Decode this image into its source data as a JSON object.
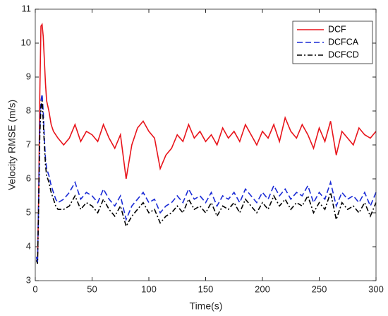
{
  "chart_data": {
    "type": "line",
    "xlabel": "Time(s)",
    "ylabel": "Velocity RMSE (m/s)",
    "xlim": [
      0,
      300
    ],
    "ylim": [
      3,
      11
    ],
    "xticks": [
      0,
      50,
      100,
      150,
      200,
      250,
      300
    ],
    "yticks": [
      3,
      4,
      5,
      6,
      7,
      8,
      9,
      10,
      11
    ],
    "legend": "upper right",
    "grid": false,
    "x": [
      1,
      2,
      3,
      4,
      5,
      6,
      7,
      8,
      9,
      10,
      12,
      14,
      16,
      18,
      20,
      25,
      30,
      35,
      40,
      45,
      50,
      55,
      60,
      65,
      70,
      75,
      80,
      85,
      90,
      95,
      100,
      105,
      110,
      115,
      120,
      125,
      130,
      135,
      140,
      145,
      150,
      155,
      160,
      165,
      170,
      175,
      180,
      185,
      190,
      195,
      200,
      205,
      210,
      215,
      220,
      225,
      230,
      235,
      240,
      245,
      250,
      255,
      260,
      265,
      270,
      275,
      280,
      285,
      290,
      295,
      300
    ],
    "series": [
      {
        "name": "DCF",
        "color": "#e8141b",
        "dash": "solid",
        "values": [
          3.7,
          3.6,
          5.5,
          8.5,
          10.5,
          10.55,
          10.2,
          9.5,
          8.8,
          8.3,
          8.0,
          7.6,
          7.4,
          7.3,
          7.2,
          7.0,
          7.2,
          7.6,
          7.1,
          7.4,
          7.3,
          7.1,
          7.6,
          7.2,
          6.9,
          7.3,
          6.0,
          7.0,
          7.5,
          7.7,
          7.4,
          7.2,
          6.3,
          6.7,
          6.9,
          7.3,
          7.1,
          7.6,
          7.2,
          7.4,
          7.1,
          7.3,
          7.0,
          7.5,
          7.2,
          7.4,
          7.1,
          7.6,
          7.3,
          7.0,
          7.4,
          7.2,
          7.6,
          7.1,
          7.8,
          7.4,
          7.2,
          7.6,
          7.3,
          6.9,
          7.5,
          7.1,
          7.7,
          6.7,
          7.4,
          7.2,
          7.0,
          7.5,
          7.3,
          7.2,
          7.4
        ]
      },
      {
        "name": "DCFCA",
        "color": "#1a2bd6",
        "dash": "dashed",
        "values": [
          3.7,
          3.5,
          5.5,
          7.5,
          8.3,
          8.5,
          8.0,
          7.2,
          6.6,
          6.3,
          6.1,
          5.8,
          5.6,
          5.4,
          5.3,
          5.4,
          5.6,
          5.9,
          5.4,
          5.6,
          5.5,
          5.3,
          5.7,
          5.4,
          5.2,
          5.5,
          4.8,
          5.2,
          5.4,
          5.6,
          5.3,
          5.4,
          5.0,
          5.2,
          5.3,
          5.5,
          5.3,
          5.7,
          5.4,
          5.5,
          5.3,
          5.6,
          5.2,
          5.5,
          5.4,
          5.6,
          5.3,
          5.7,
          5.5,
          5.3,
          5.6,
          5.4,
          5.8,
          5.5,
          5.7,
          5.4,
          5.6,
          5.5,
          5.8,
          5.3,
          5.6,
          5.4,
          5.9,
          5.2,
          5.6,
          5.4,
          5.5,
          5.3,
          5.6,
          5.2,
          5.6
        ]
      },
      {
        "name": "DCFCD",
        "color": "#000000",
        "dash": "dashdot",
        "values": [
          3.6,
          3.5,
          5.2,
          7.3,
          8.1,
          8.3,
          7.7,
          7.0,
          6.4,
          6.1,
          5.9,
          5.6,
          5.4,
          5.2,
          5.1,
          5.1,
          5.2,
          5.5,
          5.1,
          5.3,
          5.2,
          5.0,
          5.4,
          5.1,
          4.9,
          5.2,
          4.6,
          4.9,
          5.1,
          5.3,
          5.0,
          5.1,
          4.7,
          4.9,
          5.0,
          5.2,
          5.0,
          5.4,
          5.1,
          5.2,
          5.0,
          5.3,
          4.9,
          5.2,
          5.1,
          5.3,
          5.0,
          5.4,
          5.2,
          5.0,
          5.3,
          5.1,
          5.5,
          5.2,
          5.4,
          5.1,
          5.3,
          5.2,
          5.5,
          5.0,
          5.3,
          5.1,
          5.6,
          4.8,
          5.3,
          5.1,
          5.2,
          5.0,
          5.3,
          4.9,
          5.3
        ]
      }
    ]
  }
}
